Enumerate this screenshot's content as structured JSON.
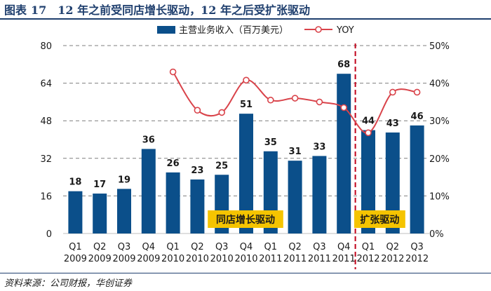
{
  "header": {
    "figure_label": "图表",
    "figure_number": "17",
    "title": "12 年之前受同店增长驱动，12 年之后受扩张驱动"
  },
  "source": "资料来源：公司财报，华创证券",
  "colors": {
    "bar": "#0b4f8a",
    "line": "#d9434a",
    "divider": "#c0001a",
    "badge": "#f5c400",
    "title": "#1f3f6e",
    "grid": "#7f7f7f"
  },
  "chart_data": {
    "type": "bar+line",
    "title": "12 年之前受同店增长驱动，12 年之后受扩张驱动",
    "categories": [
      [
        "Q1",
        "2009"
      ],
      [
        "Q2",
        "2009"
      ],
      [
        "Q3",
        "2009"
      ],
      [
        "Q4",
        "2009"
      ],
      [
        "Q1",
        "2010"
      ],
      [
        "Q2",
        "2010"
      ],
      [
        "Q3",
        "2010"
      ],
      [
        "Q4",
        "2010"
      ],
      [
        "Q1",
        "2011"
      ],
      [
        "Q2",
        "2011"
      ],
      [
        "Q3",
        "2011"
      ],
      [
        "Q4",
        "2011"
      ],
      [
        "Q1",
        "2012"
      ],
      [
        "Q2",
        "2012"
      ],
      [
        "Q3",
        "2012"
      ]
    ],
    "series": [
      {
        "name": "主营业务收入（百万美元）",
        "type": "bar",
        "axis": "left",
        "values": [
          18,
          17,
          19,
          36,
          26,
          23,
          25,
          51,
          35,
          31,
          33,
          68,
          44,
          43,
          46
        ],
        "labels": [
          "18",
          "17",
          "19",
          "36",
          "26",
          "23",
          "25",
          "51",
          "35",
          "31",
          "33",
          "68",
          "44",
          "43",
          "46"
        ]
      },
      {
        "name": "YOY",
        "type": "line",
        "axis": "right",
        "values": [
          null,
          null,
          null,
          null,
          43.0,
          32.8,
          32.2,
          40.8,
          35.5,
          36.0,
          35.0,
          33.5,
          26.8,
          37.6,
          37.6
        ]
      }
    ],
    "y_left": {
      "min": 0,
      "max": 80,
      "ticks": [
        0,
        16,
        32,
        48,
        64,
        80
      ]
    },
    "y_right": {
      "min": 0,
      "max": 50,
      "ticks": [
        "0%",
        "10%",
        "20%",
        "30%",
        "40%",
        "50%"
      ]
    },
    "annotations": [
      {
        "text": "同店增长驱动",
        "start_category": 6,
        "end_category": 8
      },
      {
        "text": "扩张驱动",
        "start_category": 12,
        "end_category": 13
      }
    ],
    "divider_after_category": 11,
    "legend": {
      "position": "top"
    }
  }
}
